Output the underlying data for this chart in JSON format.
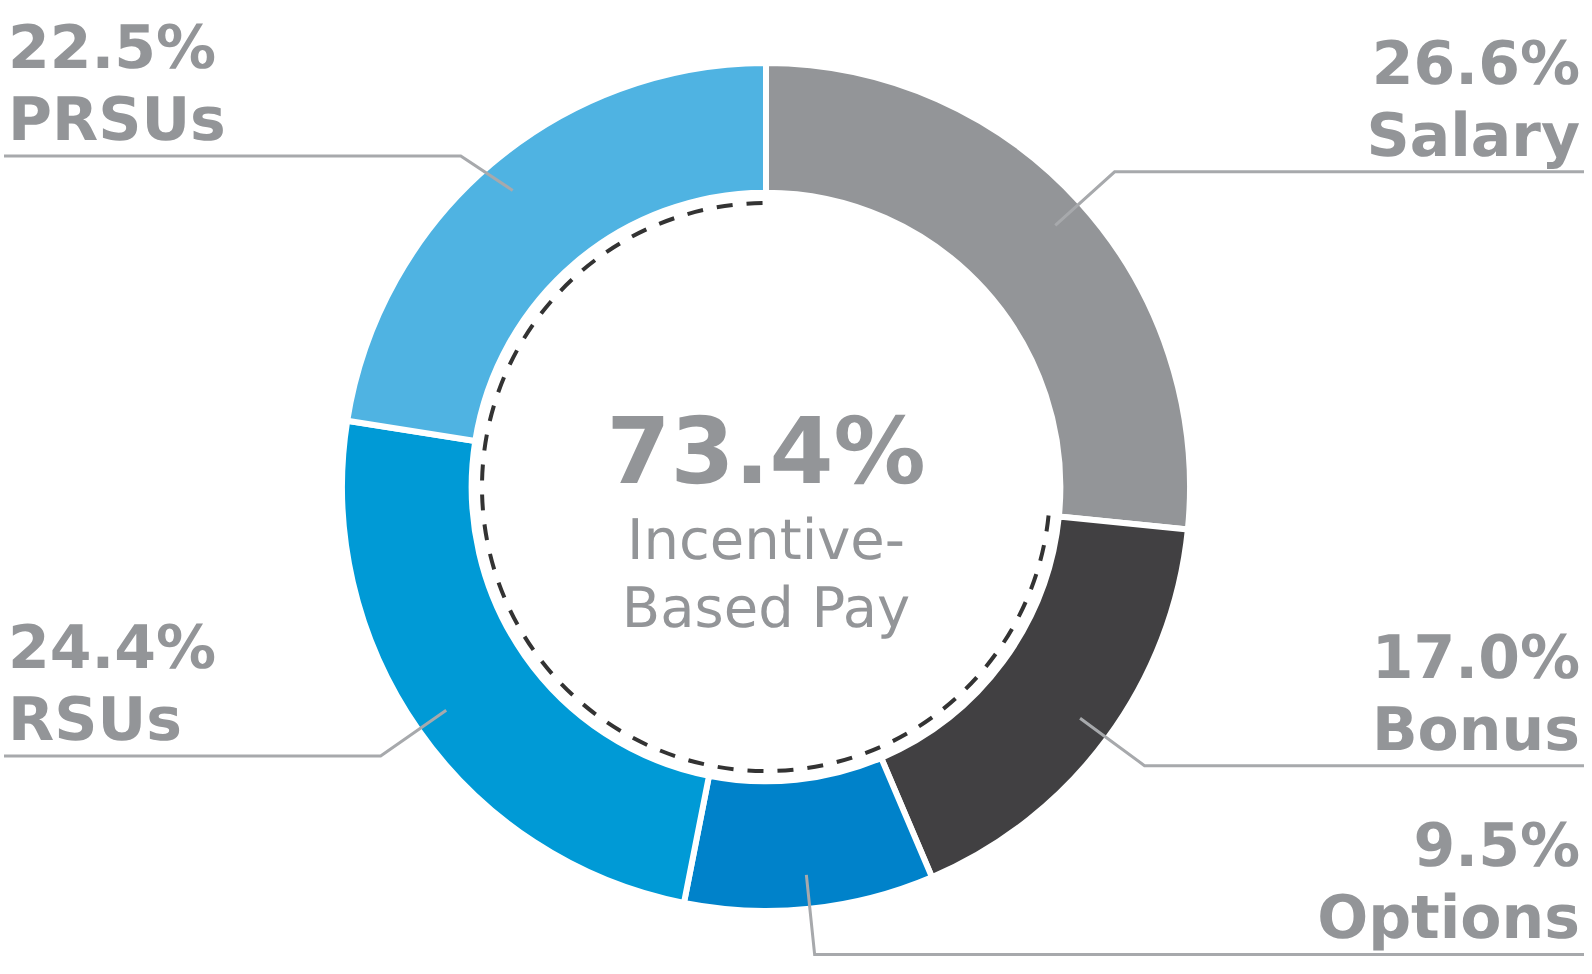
{
  "chart_data": {
    "type": "donut",
    "categories": [
      "Salary",
      "Bonus",
      "Options",
      "RSUs",
      "PRSUs"
    ],
    "values": [
      26.6,
      17.0,
      9.5,
      24.4,
      22.5
    ],
    "colors": [
      "#939598",
      "#414042",
      "#0082ca",
      "#009ad6",
      "#4fb3e2"
    ],
    "value_labels": [
      "26.6%",
      "17.0%",
      "9.5%",
      "24.4%",
      "22.5%"
    ],
    "annotations": [
      "73.4%",
      "Incentive-Based Pay"
    ],
    "legend": false
  }
}
